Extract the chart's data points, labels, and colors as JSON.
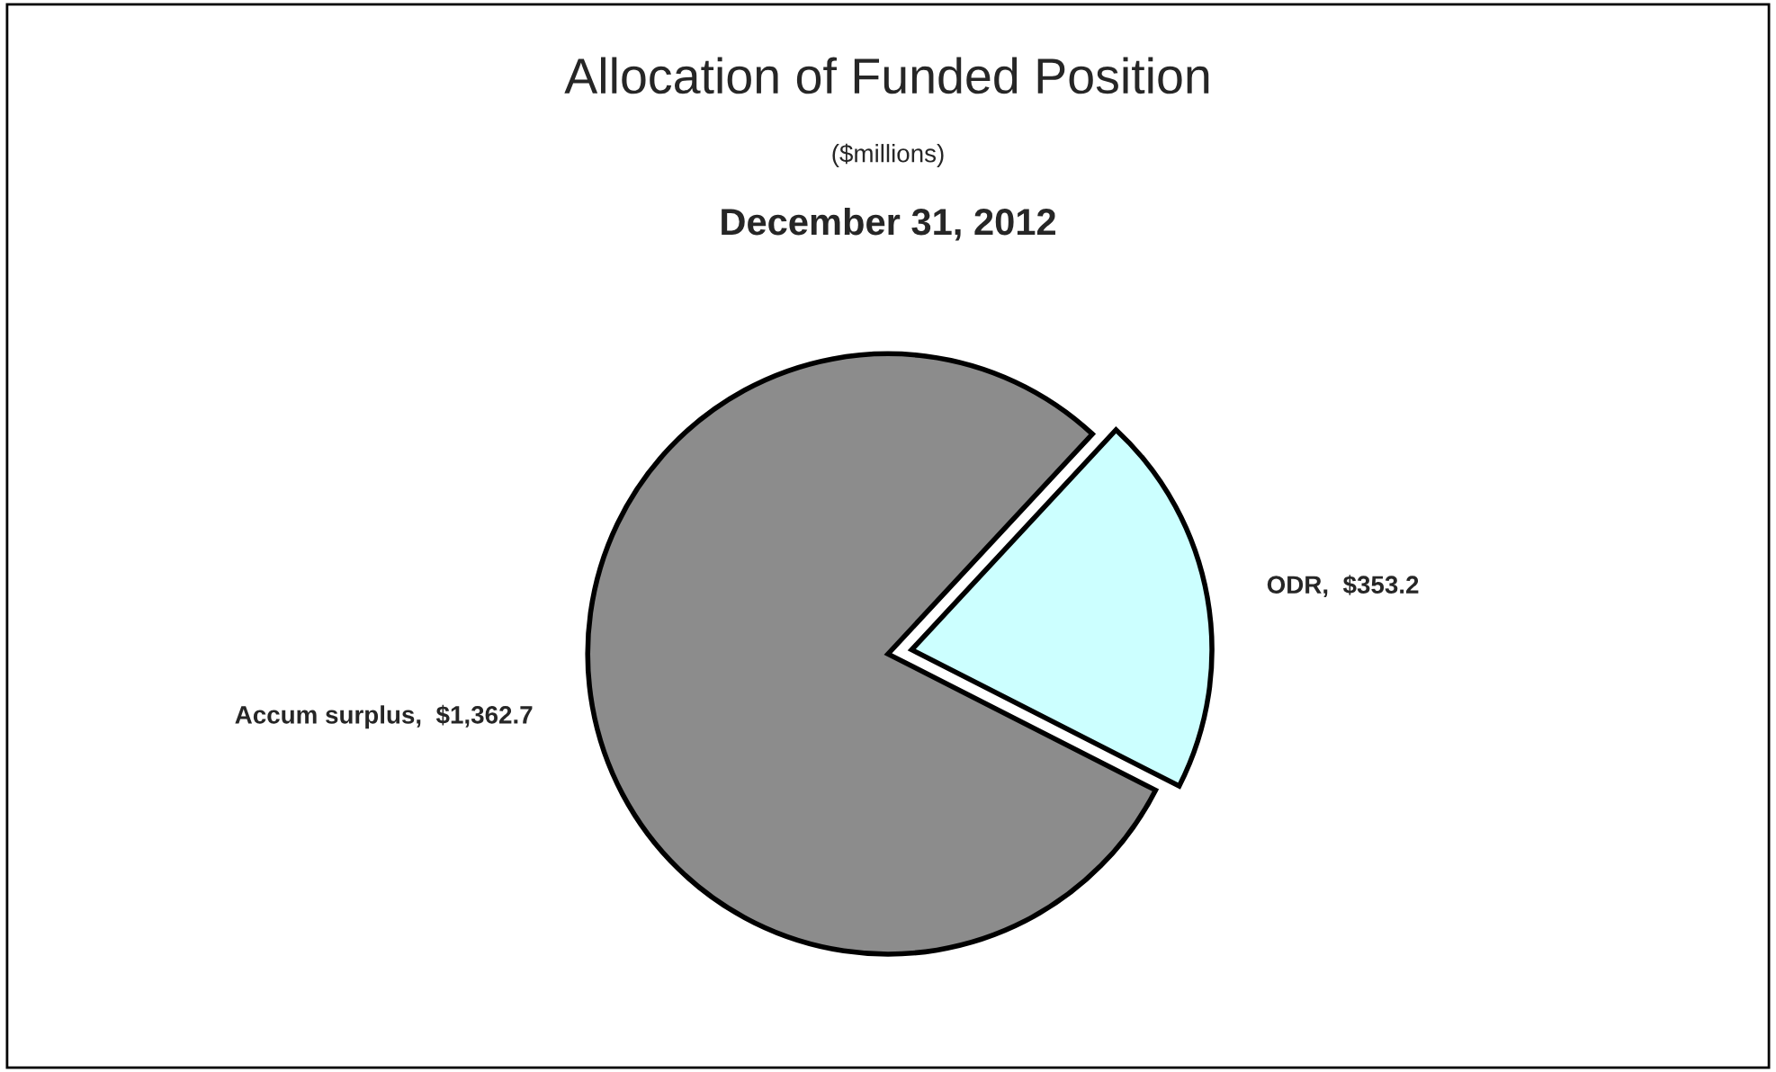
{
  "chart_data": {
    "type": "pie",
    "title": "Allocation of Funded Position",
    "subtitle": "($millions)",
    "annotations": [
      "December 31, 2012"
    ],
    "categories": [
      "ODR",
      "Accum surplus"
    ],
    "values": [
      353.2,
      1362.7
    ],
    "value_labels": [
      "$353.2",
      "$1,362.7"
    ],
    "colors": [
      "#ccffff",
      "#8c8c8c"
    ]
  }
}
